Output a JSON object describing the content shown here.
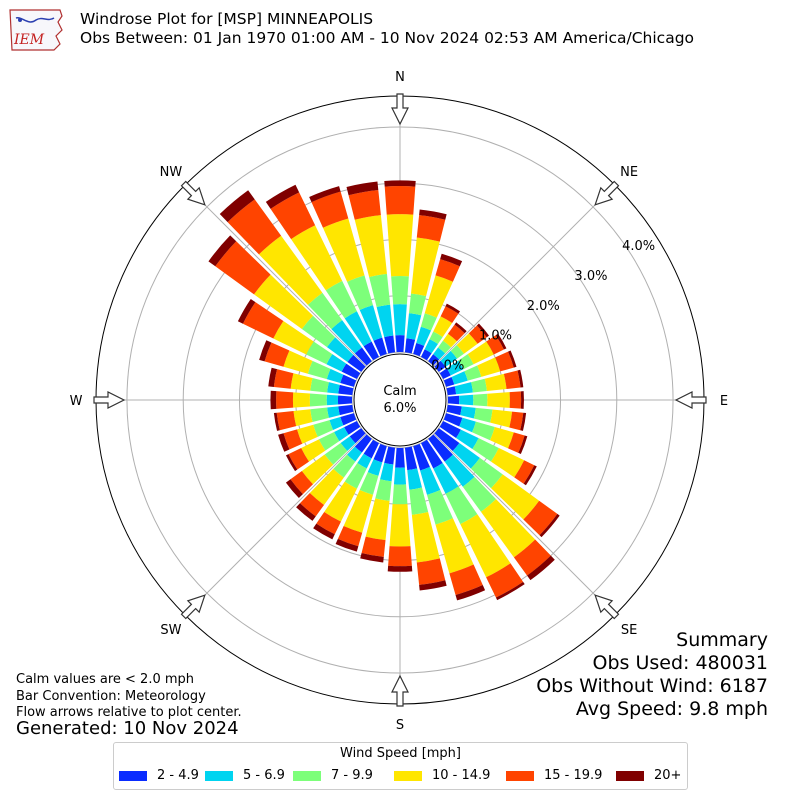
{
  "header": {
    "title_line1": "Windrose Plot for [MSP] MINNEAPOLIS",
    "title_line2": "Obs Between: 01 Jan 1970 01:00 AM - 10 Nov 2024 02:53 AM America/Chicago",
    "logo_text": "IEM"
  },
  "notes": {
    "calm_note": "Calm values are < 2.0 mph",
    "bar_convention": "Bar Convention: Meteorology",
    "flow_arrows": "Flow arrows relative to plot center.",
    "generated": "Generated: 10 Nov 2024"
  },
  "summary": {
    "heading": "Summary",
    "obs_used": "Obs Used: 480031",
    "obs_without_wind": "Obs Without Wind: 6187",
    "avg_speed": "Avg Speed: 9.8 mph"
  },
  "legend": {
    "title": "Wind Speed [mph]",
    "items": [
      {
        "label": "2 - 4.9",
        "color": "#0a2cff"
      },
      {
        "label": "5 - 6.9",
        "color": "#00d4f0"
      },
      {
        "label": "7 - 9.9",
        "color": "#7dff7a"
      },
      {
        "label": "10 - 14.9",
        "color": "#ffe600"
      },
      {
        "label": "15 - 19.9",
        "color": "#ff4400"
      },
      {
        "label": "20+",
        "color": "#800000"
      }
    ]
  },
  "chart_data": {
    "type": "windrose",
    "calm": {
      "label": "Calm",
      "value": "6.0%"
    },
    "compass": [
      {
        "label": "N",
        "deg": 0
      },
      {
        "label": "NE",
        "deg": 45
      },
      {
        "label": "E",
        "deg": 90
      },
      {
        "label": "SE",
        "deg": 135
      },
      {
        "label": "S",
        "deg": 180
      },
      {
        "label": "SW",
        "deg": 225
      },
      {
        "label": "W",
        "deg": 270
      },
      {
        "label": "NW",
        "deg": 315
      }
    ],
    "radial_ticks": [
      "0.0%",
      "1.0%",
      "2.0%",
      "3.0%",
      "4.0%"
    ],
    "radial_tick_values": [
      0,
      1,
      2,
      3,
      4
    ],
    "radial_max": 4.55,
    "direction_step_deg": 10,
    "bins": [
      "2 - 4.9",
      "5 - 6.9",
      "7 - 9.9",
      "10 - 14.9",
      "15 - 19.9",
      "20+"
    ],
    "colors": [
      "#0a2cff",
      "#00d4f0",
      "#7dff7a",
      "#ffe600",
      "#ff4400",
      "#800000"
    ],
    "cumulative_percent": [
      [
        0.3,
        0.85,
        1.35,
        2.45,
        2.95,
        3.05
      ],
      [
        0.25,
        0.7,
        1.05,
        2.05,
        2.45,
        2.55
      ],
      [
        0.2,
        0.5,
        0.75,
        1.45,
        1.75,
        1.85
      ],
      [
        0.15,
        0.35,
        0.5,
        0.8,
        1.0,
        1.05
      ],
      [
        0.15,
        0.3,
        0.45,
        0.6,
        0.8,
        0.85
      ],
      [
        0.15,
        0.4,
        0.55,
        0.85,
        1.05,
        1.1
      ],
      [
        0.15,
        0.4,
        0.6,
        1.0,
        1.2,
        1.25
      ],
      [
        0.15,
        0.4,
        0.65,
        1.0,
        1.25,
        1.3
      ],
      [
        0.15,
        0.45,
        0.7,
        1.05,
        1.3,
        1.35
      ],
      [
        0.2,
        0.45,
        0.7,
        1.1,
        1.3,
        1.35
      ],
      [
        0.25,
        0.5,
        0.8,
        1.15,
        1.35,
        1.4
      ],
      [
        0.3,
        0.55,
        0.9,
        1.25,
        1.45,
        1.5
      ],
      [
        0.35,
        0.7,
        1.1,
        1.6,
        1.8,
        1.85
      ],
      [
        0.45,
        0.9,
        1.4,
        2.2,
        2.6,
        2.65
      ],
      [
        0.5,
        1.05,
        1.6,
        2.6,
        3.0,
        3.1
      ],
      [
        0.5,
        1.0,
        1.6,
        2.65,
        3.05,
        3.1
      ],
      [
        0.45,
        0.9,
        1.45,
        2.35,
        2.75,
        2.85
      ],
      [
        0.4,
        0.75,
        1.2,
        2.05,
        2.45,
        2.55
      ],
      [
        0.35,
        0.65,
        1.0,
        1.75,
        2.1,
        2.2
      ],
      [
        0.3,
        0.6,
        0.95,
        1.65,
        1.95,
        2.05
      ],
      [
        0.3,
        0.55,
        0.9,
        1.6,
        1.85,
        1.95
      ],
      [
        0.3,
        0.5,
        0.9,
        1.55,
        1.8,
        1.9
      ],
      [
        0.3,
        0.5,
        0.85,
        1.45,
        1.7,
        1.8
      ],
      [
        0.25,
        0.45,
        0.8,
        1.3,
        1.55,
        1.65
      ],
      [
        0.25,
        0.45,
        0.75,
        1.1,
        1.35,
        1.4
      ],
      [
        0.25,
        0.45,
        0.75,
        1.05,
        1.3,
        1.4
      ],
      [
        0.25,
        0.45,
        0.75,
        1.05,
        1.35,
        1.4
      ],
      [
        0.25,
        0.45,
        0.75,
        1.05,
        1.35,
        1.45
      ],
      [
        0.25,
        0.45,
        0.75,
        1.1,
        1.4,
        1.5
      ],
      [
        0.25,
        0.5,
        0.85,
        1.3,
        1.65,
        1.75
      ],
      [
        0.3,
        0.6,
        1.0,
        1.65,
        2.25,
        2.35
      ],
      [
        0.3,
        0.75,
        1.3,
        2.35,
        3.2,
        3.35
      ],
      [
        0.3,
        0.9,
        1.5,
        2.75,
        3.55,
        3.75
      ],
      [
        0.3,
        0.9,
        1.5,
        2.6,
        3.25,
        3.4
      ],
      [
        0.3,
        0.9,
        1.45,
        2.5,
        3.0,
        3.1
      ],
      [
        0.3,
        0.85,
        1.4,
        2.45,
        2.9,
        3.05
      ]
    ]
  }
}
